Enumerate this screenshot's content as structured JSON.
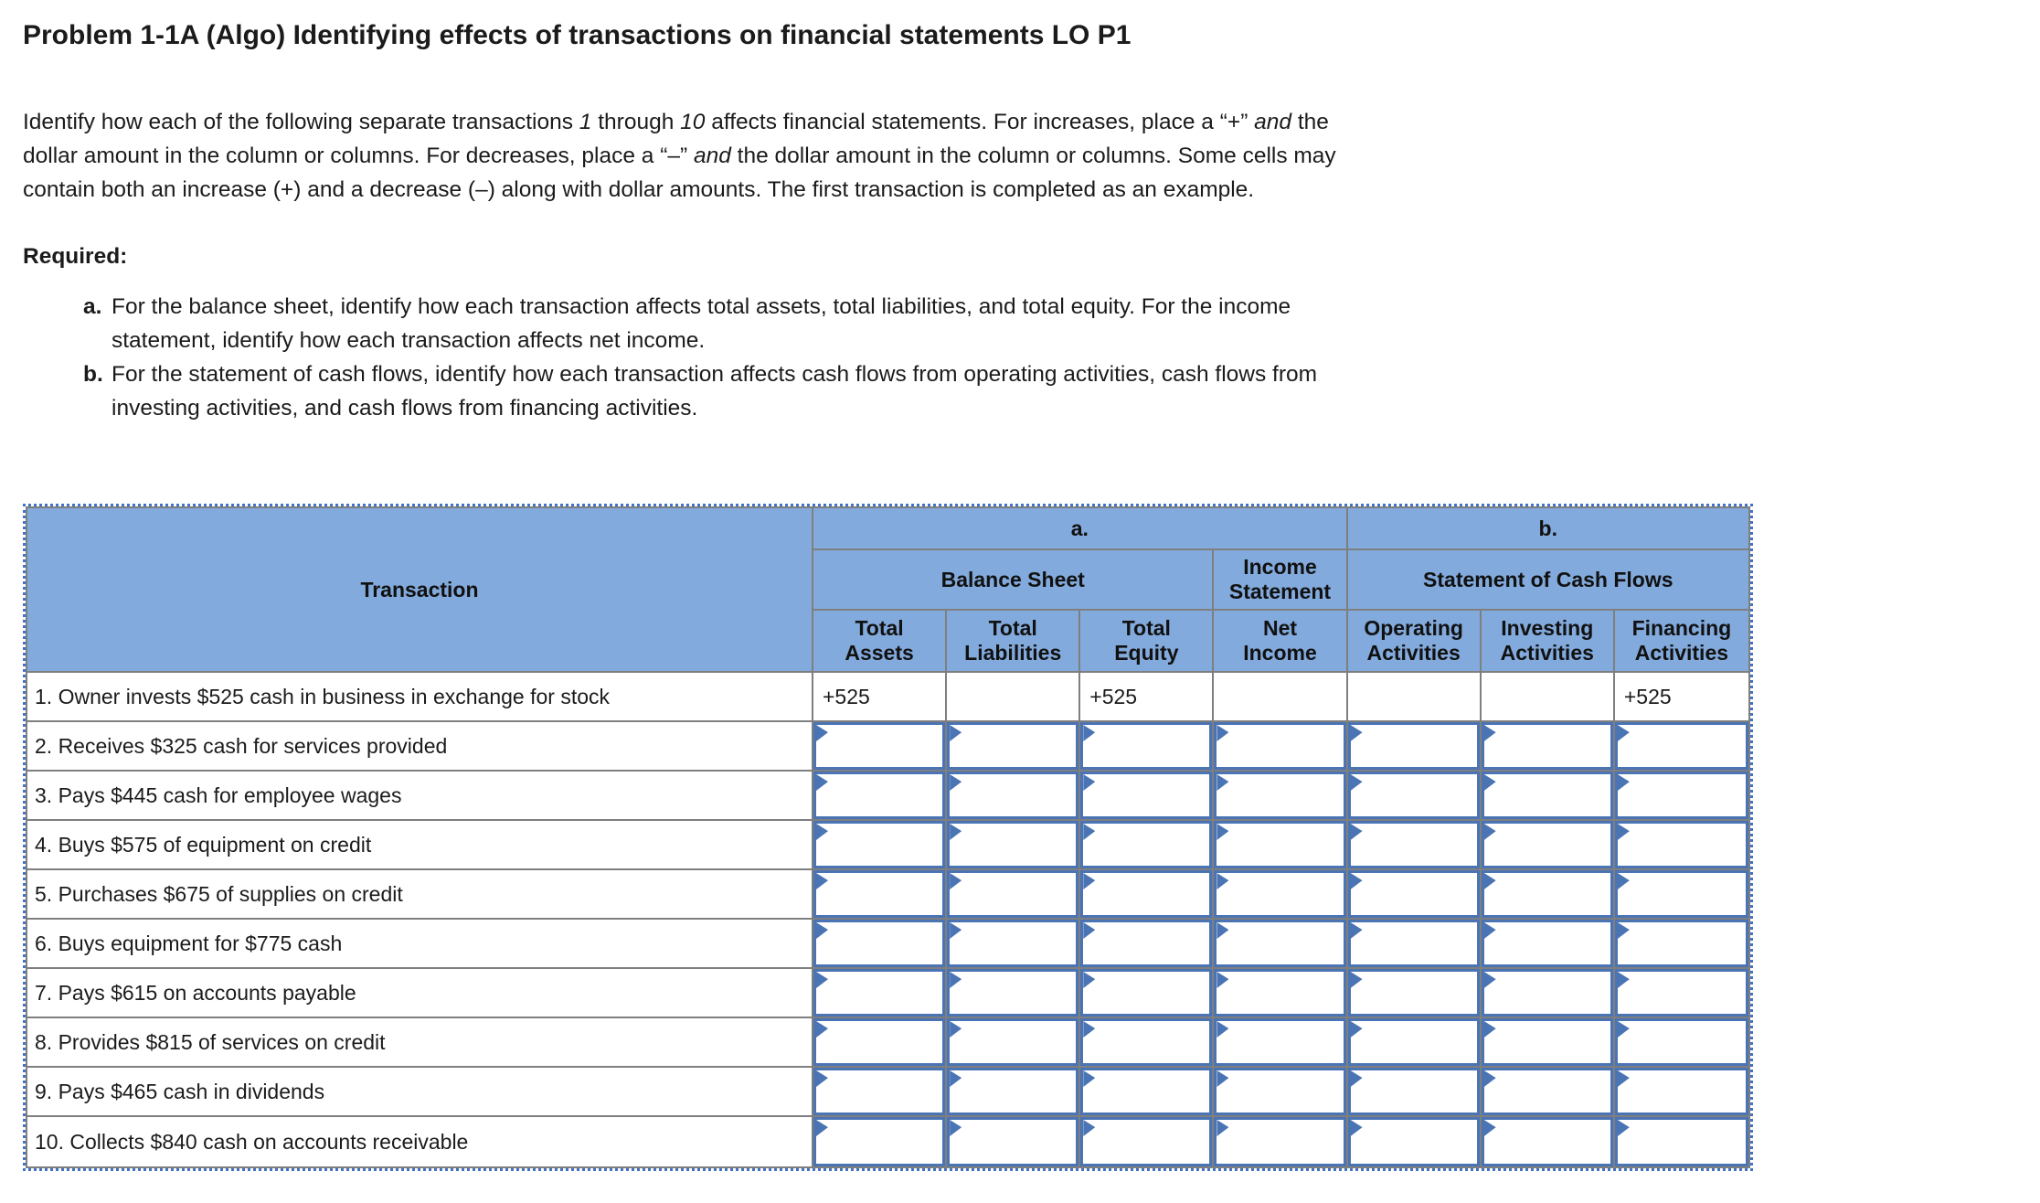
{
  "title": "Problem 1-1A (Algo) Identifying effects of transactions on financial statements LO P1",
  "intro": {
    "l1": [
      "Identify how each of the following separate transactions ",
      "1",
      " through ",
      "10",
      " affects financial statements. For increases, place a “+” ",
      "and",
      " the"
    ],
    "l2": [
      "dollar amount in the column or columns. For decreases, place a “–” ",
      "and",
      " the dollar amount in the column or columns. Some cells may"
    ],
    "l3": [
      "contain both an increase (+) and a decrease (–) along with dollar amounts. The first transaction is completed as an example."
    ]
  },
  "required": {
    "heading": "Required:",
    "items": [
      {
        "marker": "a.",
        "l1": "For the balance sheet, identify how each transaction affects total assets, total liabilities, and total equity. For the income",
        "l2": "statement, identify how each transaction affects net income."
      },
      {
        "marker": "b.",
        "l1": "For the statement of cash flows, identify how each transaction affects cash flows from operating activities, cash flows from",
        "l2": "investing activities, and cash flows from financing activities."
      }
    ]
  },
  "table": {
    "corner": "Transaction",
    "group_a": "a.",
    "group_b": "b.",
    "balance_sheet": "Balance Sheet",
    "income_statement_l1": "Income",
    "income_statement_l2": "Statement",
    "cash_flows": "Statement of Cash Flows",
    "columns": [
      {
        "l1": "Total",
        "l2": "Assets"
      },
      {
        "l1": "Total",
        "l2": "Liabilities"
      },
      {
        "l1": "Total",
        "l2": "Equity"
      },
      {
        "l1": "Net",
        "l2": "Income"
      },
      {
        "l1": "Operating",
        "l2": "Activities"
      },
      {
        "l1": "Investing",
        "l2": "Activities"
      },
      {
        "l1": "Financing",
        "l2": "Activities"
      }
    ],
    "rows": [
      {
        "label": "1. Owner invests $525 cash in business in exchange for stock",
        "type": "example",
        "values": [
          "+525",
          "",
          "+525",
          "",
          "",
          "",
          "+525"
        ]
      },
      {
        "label": "2. Receives $325 cash for services provided",
        "type": "input"
      },
      {
        "label": "3. Pays $445 cash for employee wages",
        "type": "input"
      },
      {
        "label": "4. Buys $575 of equipment on credit",
        "type": "input"
      },
      {
        "label": "5. Purchases $675 of supplies on credit",
        "type": "input"
      },
      {
        "label": "6. Buys equipment for $775 cash",
        "type": "input"
      },
      {
        "label": "7. Pays $615 on accounts payable",
        "type": "input"
      },
      {
        "label": "8. Provides $815 of services on credit",
        "type": "input"
      },
      {
        "label": "9. Pays $465 cash in dividends",
        "type": "input"
      },
      {
        "label": "10. Collects $840 cash on accounts receivable",
        "type": "input"
      }
    ],
    "colors": {
      "header_blue": "#82aadc",
      "input_border_blue": "#4a74b4",
      "grid_gray": "#7f7f7f",
      "selection_marquee_blue": "#4472c4"
    }
  }
}
